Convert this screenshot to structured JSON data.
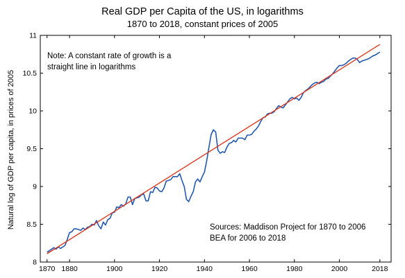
{
  "chart_data": {
    "type": "line",
    "title": "Real GDP per Capita of the US, in logarithms",
    "subtitle": "1870 to 2018, constant prices of 2005",
    "xlabel": "",
    "ylabel": "Natural log of GDP per capita, in prices of 2005",
    "xlim": [
      1867,
      2023
    ],
    "ylim": [
      8,
      11
    ],
    "x_ticks": [
      1870,
      1880,
      1900,
      1920,
      1940,
      1960,
      1980,
      2000,
      2018
    ],
    "y_ticks": [
      8,
      8.5,
      9,
      9.5,
      10,
      10.5,
      11
    ],
    "y_tick_labels": [
      "8",
      "8.5",
      "9",
      "9.5",
      "10",
      "10.5",
      "11"
    ],
    "grid": false,
    "annotations": [
      {
        "id": "note",
        "lines": [
          "Note:  A constant rate of growth is a",
          "straight line in logarithms"
        ]
      },
      {
        "id": "sources",
        "lines": [
          "Sources:  Maddison Project for 1870 to 2006",
          "BEA for 2006 to 2018"
        ]
      }
    ],
    "series": [
      {
        "color": "#2257b0",
        "x": [
          1870,
          1871,
          1872,
          1873,
          1874,
          1875,
          1876,
          1877,
          1878,
          1879,
          1880,
          1881,
          1882,
          1883,
          1884,
          1885,
          1886,
          1887,
          1888,
          1889,
          1890,
          1891,
          1892,
          1893,
          1894,
          1895,
          1896,
          1897,
          1898,
          1899,
          1900,
          1901,
          1902,
          1903,
          1904,
          1905,
          1906,
          1907,
          1908,
          1909,
          1910,
          1911,
          1912,
          1913,
          1914,
          1915,
          1916,
          1917,
          1918,
          1919,
          1920,
          1921,
          1922,
          1923,
          1924,
          1925,
          1926,
          1927,
          1928,
          1929,
          1930,
          1931,
          1932,
          1933,
          1934,
          1935,
          1936,
          1937,
          1938,
          1939,
          1940,
          1941,
          1942,
          1943,
          1944,
          1945,
          1946,
          1947,
          1948,
          1949,
          1950,
          1951,
          1952,
          1953,
          1954,
          1955,
          1956,
          1957,
          1958,
          1959,
          1960,
          1961,
          1962,
          1963,
          1964,
          1965,
          1966,
          1967,
          1968,
          1969,
          1970,
          1971,
          1972,
          1973,
          1974,
          1975,
          1976,
          1977,
          1978,
          1979,
          1980,
          1981,
          1982,
          1983,
          1984,
          1985,
          1986,
          1987,
          1988,
          1989,
          1990,
          1991,
          1992,
          1993,
          1994,
          1995,
          1996,
          1997,
          1998,
          1999,
          2000,
          2001,
          2002,
          2003,
          2004,
          2005,
          2006,
          2007,
          2008,
          2009,
          2010,
          2011,
          2012,
          2013,
          2014,
          2015,
          2016,
          2017,
          2018
        ],
        "y": [
          8.13,
          8.15,
          8.17,
          8.19,
          8.17,
          8.2,
          8.18,
          8.2,
          8.22,
          8.3,
          8.39,
          8.4,
          8.44,
          8.44,
          8.43,
          8.42,
          8.45,
          8.43,
          8.46,
          8.47,
          8.5,
          8.49,
          8.55,
          8.48,
          8.44,
          8.53,
          8.49,
          8.56,
          8.58,
          8.65,
          8.66,
          8.73,
          8.72,
          8.76,
          8.74,
          8.77,
          8.86,
          8.86,
          8.76,
          8.84,
          8.85,
          8.86,
          8.89,
          8.9,
          8.81,
          8.81,
          8.93,
          8.92,
          8.99,
          8.98,
          8.94,
          8.93,
          8.98,
          9.07,
          9.08,
          9.09,
          9.13,
          9.13,
          9.13,
          9.17,
          9.08,
          9.0,
          8.83,
          8.8,
          8.87,
          8.93,
          9.06,
          9.1,
          9.06,
          9.13,
          9.19,
          9.34,
          9.52,
          9.69,
          9.75,
          9.72,
          9.48,
          9.44,
          9.46,
          9.45,
          9.52,
          9.57,
          9.58,
          9.61,
          9.59,
          9.64,
          9.64,
          9.64,
          9.62,
          9.68,
          9.68,
          9.69,
          9.73,
          9.76,
          9.8,
          9.86,
          9.91,
          9.92,
          9.96,
          9.97,
          9.97,
          9.99,
          10.03,
          10.07,
          10.05,
          10.04,
          10.08,
          10.12,
          10.16,
          10.18,
          10.16,
          10.17,
          10.14,
          10.18,
          10.24,
          10.27,
          10.29,
          10.32,
          10.35,
          10.37,
          10.38,
          10.36,
          10.38,
          10.39,
          10.42,
          10.43,
          10.46,
          10.49,
          10.53,
          10.57,
          10.6,
          10.6,
          10.61,
          10.63,
          10.66,
          10.68,
          10.7,
          10.7,
          10.68,
          10.64,
          10.66,
          10.67,
          10.68,
          10.69,
          10.71,
          10.73,
          10.74,
          10.76,
          10.78
        ]
      },
      {
        "color": "#d9391f",
        "x": [
          1870,
          2018
        ],
        "y": [
          8.11,
          10.88
        ]
      }
    ]
  }
}
